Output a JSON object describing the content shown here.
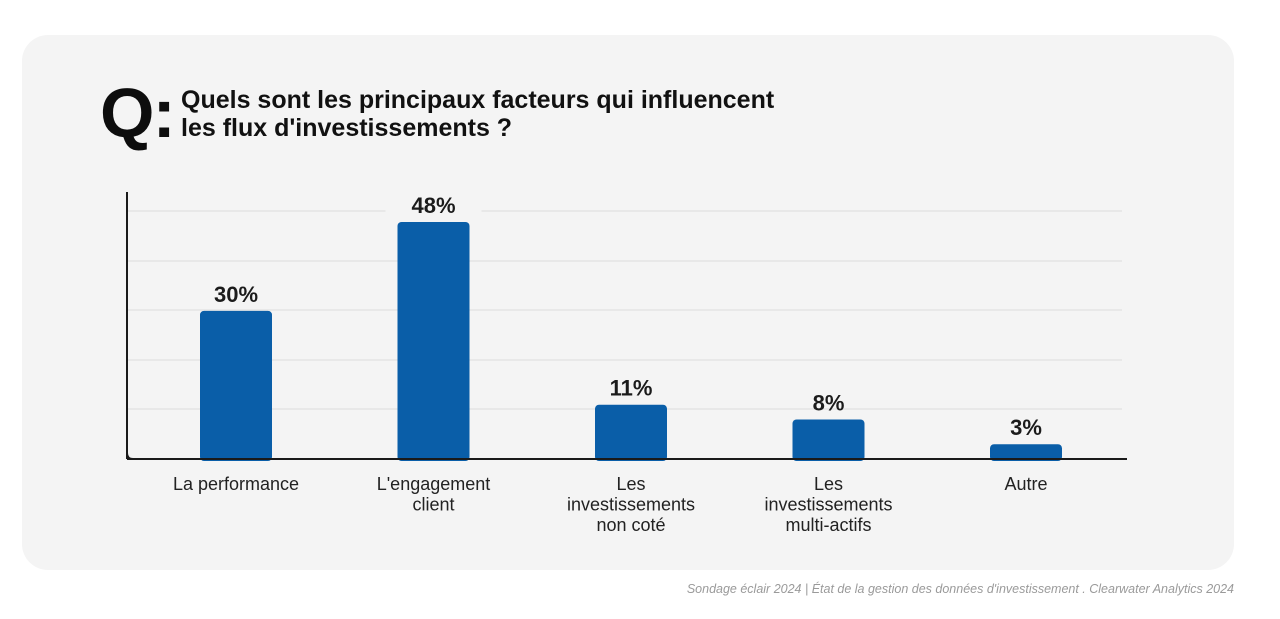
{
  "question": {
    "mark": "Q:",
    "line1": "Quels sont les principaux facteurs qui influencent",
    "line2": "les flux d'investissements ?"
  },
  "chart_data": {
    "type": "bar",
    "title": "Quels sont les principaux facteurs qui influencent les flux d'investissements ?",
    "categories": [
      [
        "La performance"
      ],
      [
        "L'engagement",
        "client"
      ],
      [
        "Les",
        "investissements",
        "non coté"
      ],
      [
        "Les",
        "investissements",
        "multi-actifs"
      ],
      [
        "Autre"
      ]
    ],
    "values": [
      30,
      48,
      11,
      8,
      3
    ],
    "value_labels": [
      "30%",
      "48%",
      "11%",
      "8%",
      "3%"
    ],
    "ylim": [
      0,
      48
    ],
    "grid": true,
    "bar_color": "#0a5ea8",
    "xlabel": "",
    "ylabel": ""
  },
  "footer": "Sondage éclair 2024 | État de la gestion des données d'investissement . Clearwater Analytics 2024"
}
